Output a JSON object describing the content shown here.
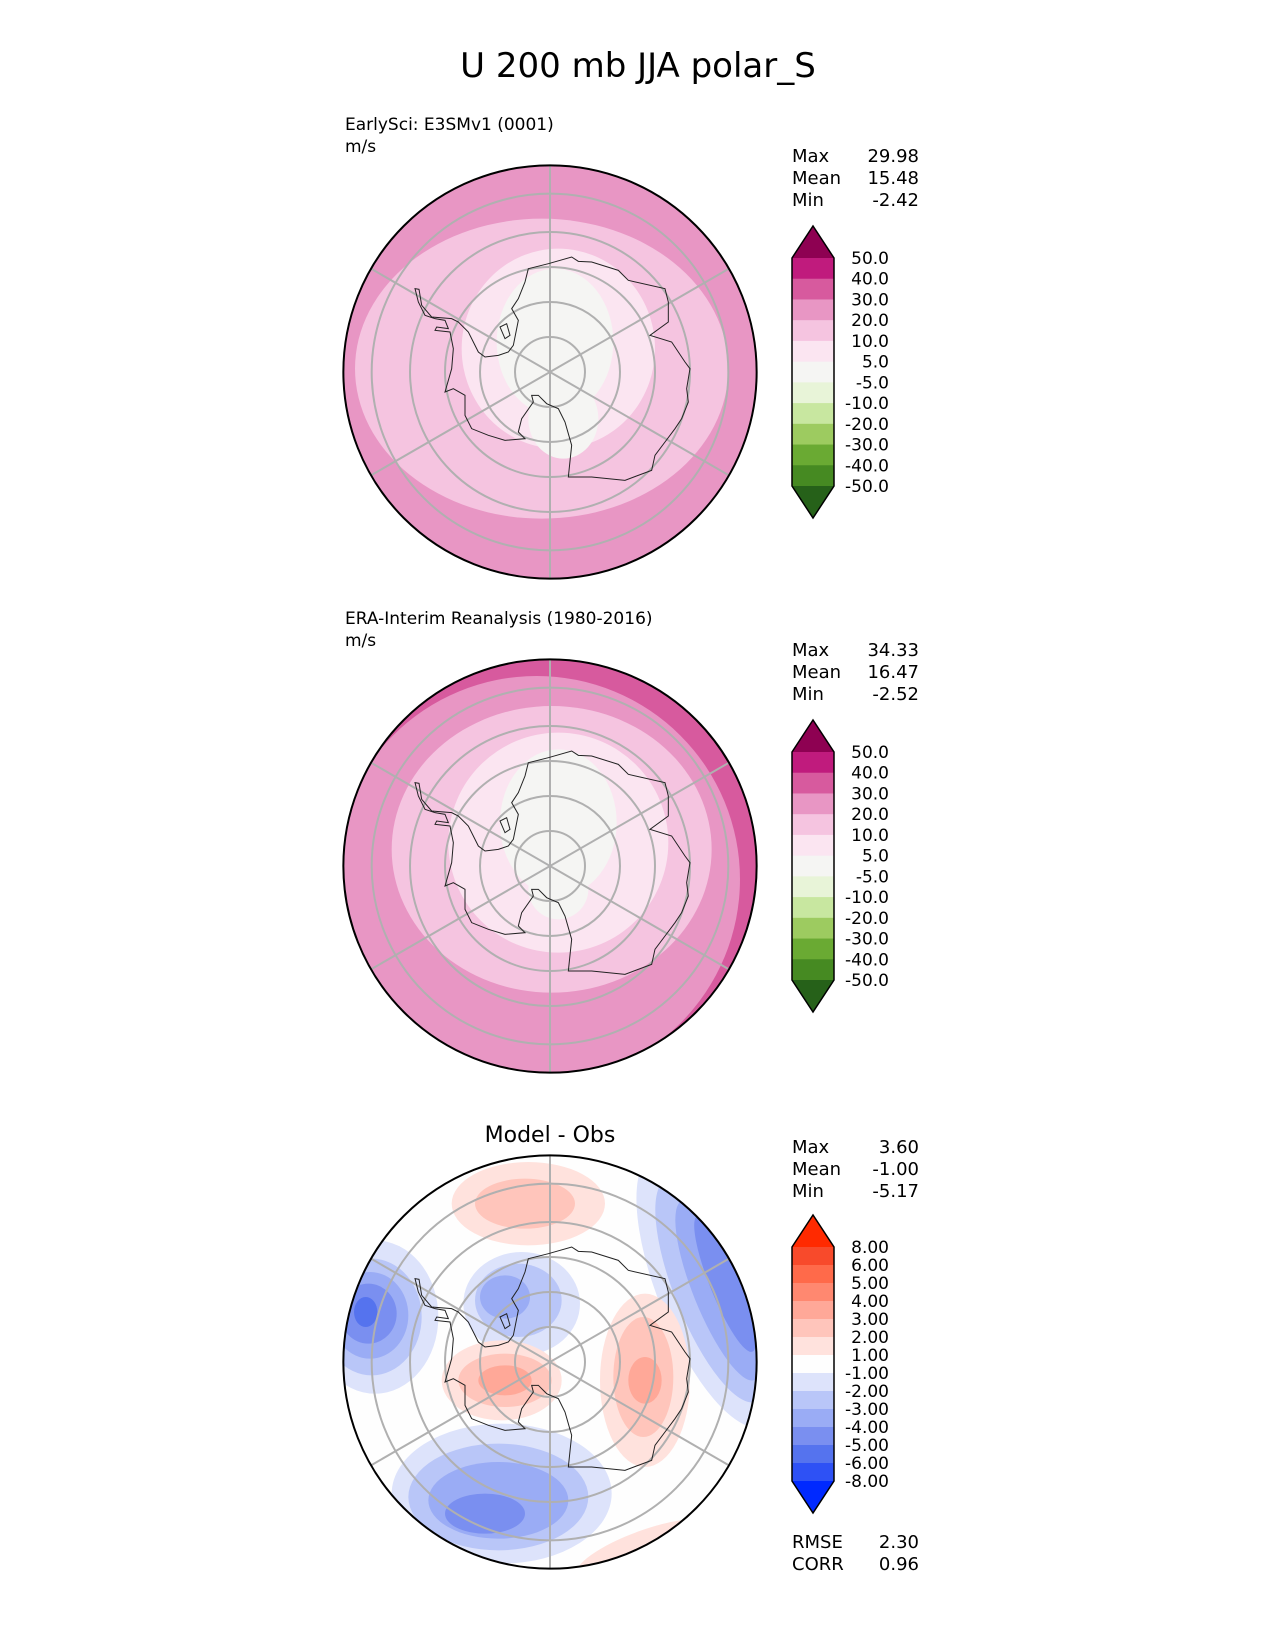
{
  "title": "U 200 mb JJA polar_S",
  "panels": [
    {
      "name": "test",
      "subtitle": "EarlySci: E3SMv1 (0001)",
      "units": "m/s",
      "stats": {
        "max_label": "Max",
        "max": "29.98",
        "mean_label": "Mean",
        "mean": "15.48",
        "min_label": "Min",
        "min": "-2.42"
      }
    },
    {
      "name": "reference",
      "subtitle": "ERA-Interim Reanalysis (1980-2016)",
      "units": "m/s",
      "stats": {
        "max_label": "Max",
        "max": "34.33",
        "mean_label": "Mean",
        "mean": "16.47",
        "min_label": "Min",
        "min": "-2.52"
      }
    },
    {
      "name": "diff",
      "title": "Model - Obs",
      "stats": {
        "max_label": "Max",
        "max": "3.60",
        "mean_label": "Mean",
        "mean": "-1.00",
        "min_label": "Min",
        "min": "-5.17"
      },
      "metrics": {
        "rmse_label": "RMSE",
        "rmse": "2.30",
        "corr_label": "CORR",
        "corr": "0.96"
      }
    }
  ],
  "colorbars": {
    "field": {
      "ticks": [
        "50.0",
        "40.0",
        "30.0",
        "20.0",
        "10.0",
        "5.0",
        "-5.0",
        "-10.0",
        "-20.0",
        "-30.0",
        "-40.0",
        "-50.0"
      ],
      "colors": [
        "#8e0152",
        "#c01b7d",
        "#d75a9e",
        "#e896c4",
        "#f5c4e0",
        "#fbe5f1",
        "#f5f5f3",
        "#e8f4d8",
        "#c8e7a0",
        "#9dcb60",
        "#6aaa33",
        "#468a22",
        "#266119"
      ]
    },
    "diff": {
      "ticks": [
        "8.00",
        "6.00",
        "5.00",
        "4.00",
        "3.00",
        "2.00",
        "1.00",
        "-1.00",
        "-2.00",
        "-3.00",
        "-4.00",
        "-5.00",
        "-6.00",
        "-8.00"
      ],
      "colors": [
        "#ff2a00",
        "#f84a2b",
        "#ff6a4a",
        "#ff8870",
        "#ffa898",
        "#ffc5bb",
        "#ffe2dd",
        "#fefefe",
        "#dde3fb",
        "#b9c6f8",
        "#9aacf5",
        "#7a8ff0",
        "#5573ee",
        "#2e51f5",
        "#0029ff"
      ]
    }
  }
}
